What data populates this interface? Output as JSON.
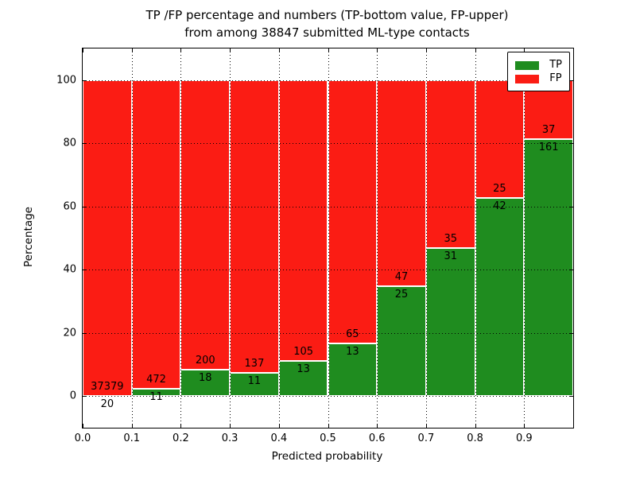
{
  "figure": {
    "title_line1": "TP /FP percentage and numbers (TP-bottom value, FP-upper)",
    "title_line2": "from among 38847 submitted ML-type contacts"
  },
  "chart_data": {
    "type": "bar",
    "stacked": true,
    "title": "TP /FP percentage and numbers (TP-bottom value, FP-upper) from among 38847 submitted ML-type contacts",
    "xlabel": "Predicted probability",
    "ylabel": "Percentage",
    "total_contacts": 38847,
    "xlim": [
      0.0,
      1.0
    ],
    "ylim": [
      -10,
      110
    ],
    "bin_width": 0.1,
    "bin_starts": [
      0.0,
      0.1,
      0.2,
      0.3,
      0.4,
      0.5,
      0.6,
      0.7,
      0.8,
      0.9
    ],
    "xtick_labels": [
      "0.0",
      "0.1",
      "0.2",
      "0.3",
      "0.4",
      "0.5",
      "0.6",
      "0.7",
      "0.8",
      "0.9"
    ],
    "yticks": [
      0,
      20,
      40,
      60,
      80,
      100
    ],
    "grid": true,
    "series": [
      {
        "name": "TP",
        "color": "#1f8c1f",
        "counts": [
          20,
          11,
          18,
          11,
          13,
          13,
          25,
          31,
          42,
          161
        ]
      },
      {
        "name": "FP",
        "color": "#fb1c14",
        "counts": [
          37379,
          472,
          200,
          137,
          105,
          65,
          47,
          35,
          25,
          37
        ]
      }
    ],
    "tp_percent_by_bin": [
      0.05,
      2.28,
      8.26,
      7.43,
      11.02,
      16.67,
      34.72,
      46.97,
      62.69,
      81.31
    ],
    "legend": {
      "position": "upper-right",
      "entries": [
        "TP",
        "FP"
      ]
    }
  }
}
